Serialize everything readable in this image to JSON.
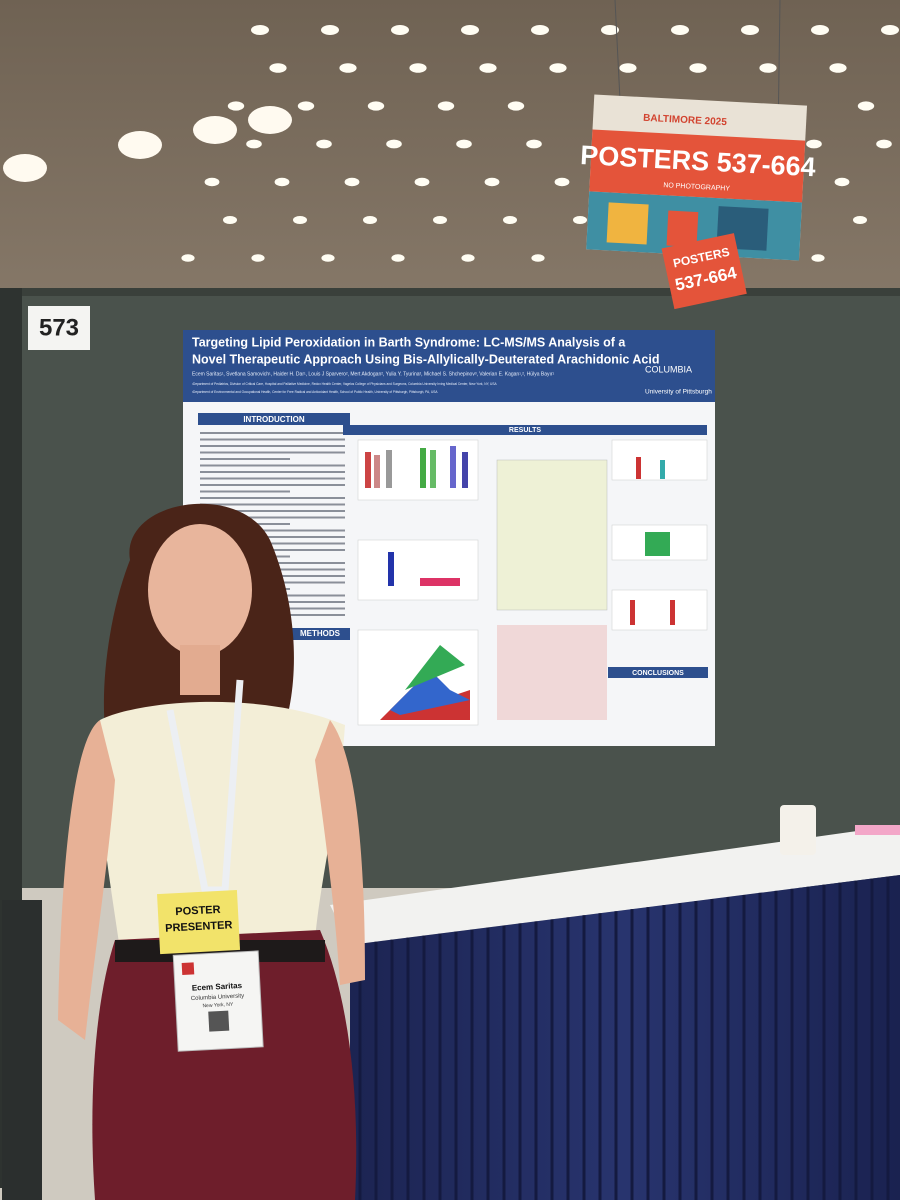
{
  "scene": {
    "booth_number": "573",
    "poster": {
      "title_line1": "Targeting Lipid Peroxidation in Barth Syndrome: LC-MS/MS Analysis of a",
      "title_line2": "Novel Therapeutic Approach Using Bis-Allylically-Deuterated Arachidonic Acid",
      "authors": "Ecem Saritas¹, Svetlana Samovich¹, Haider H. Dar¹, Louis J Sparvero², Mert Akdogan², Yulia Y. Tyurina², Michael S. Shchepinov³, Valerian E. Kagan¹,², Hülya Bayır¹",
      "affiliation1": "¹Department of Pediatrics, Division of Critical Care, Hospital and Palliative Medicine, Redox Health Center, Vagelos College of Physicians and Surgeons, Columbia University Irving Medical Center, New York, NY, USA",
      "affiliation2": "²Department of Environmental and Occupational Health, Center for Free Radical and Antioxidant Health, School of Public Health, University of Pittsburgh, Pittsburgh, PA, USA",
      "logo1": "COLUMBIA",
      "logo2": "University of Pittsburgh",
      "sections": [
        "INTRODUCTION",
        "RESULTS",
        "CONCLUSIONS",
        "METHODS"
      ]
    },
    "sign": {
      "header": "BALTIMORE 2025",
      "main": "POSTERS 537-664",
      "note": "NO PHOTOGRAPHY",
      "small_line1": "POSTERS",
      "small_line2": "537-664"
    },
    "badge": {
      "role_line1": "POSTER",
      "role_line2": "PRESENTER",
      "name": "Ecem Saritas",
      "institution": "Columbia University",
      "location": "New York, NY"
    }
  }
}
